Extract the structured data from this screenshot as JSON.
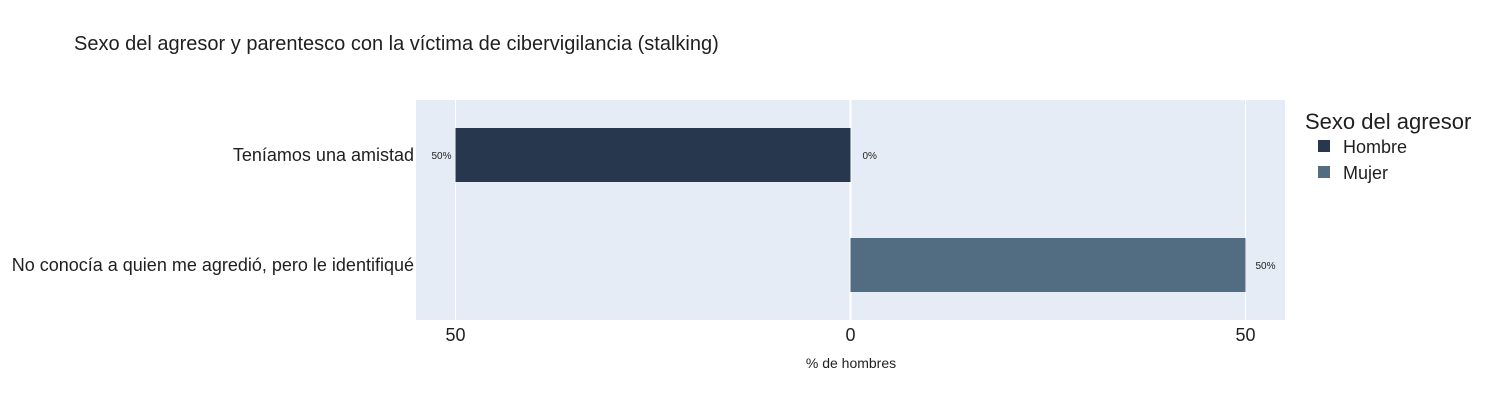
{
  "chart_data": {
    "type": "bar",
    "orientation": "horizontal",
    "title": "Sexo del agresor y parentesco con la víctima de cibervigilancia (stalking)",
    "xlabel": "% de hombres",
    "ylabel": "",
    "categories": [
      "Teníamos una amistad",
      "No conocía a quien me agredió, pero le identifiqué"
    ],
    "xlim": [
      -55,
      55
    ],
    "x_ticks": [
      -50,
      0,
      50
    ],
    "x_tick_labels": [
      "50",
      "0",
      "50"
    ],
    "grid": true,
    "legend_position": "right",
    "legend_title": "Sexo del agresor",
    "series": [
      {
        "name": "Hombre",
        "color": "#27374d",
        "values": [
          -50,
          null
        ],
        "labels": [
          "50%",
          ""
        ]
      },
      {
        "name": "Mujer",
        "color": "#526d82",
        "values": [
          0,
          50
        ],
        "labels": [
          "0%",
          "50%"
        ]
      }
    ],
    "plot_background": "#e5ecf6",
    "gridline_color": "#ffffff"
  }
}
